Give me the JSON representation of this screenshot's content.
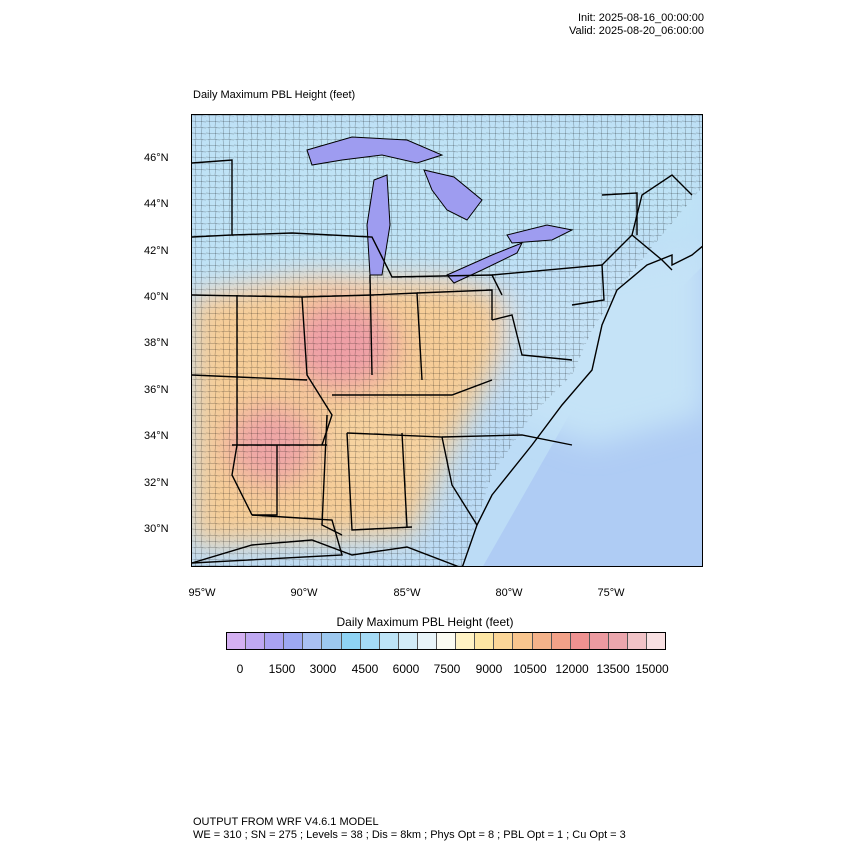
{
  "header": {
    "init": "Init: 2025-08-16_00:00:00",
    "valid": "Valid: 2025-08-20_06:00:00"
  },
  "map": {
    "title": "Daily Maximum PBL Height   (feet)",
    "lat_labels": [
      "46°N",
      "44°N",
      "42°N",
      "40°N",
      "38°N",
      "36°N",
      "34°N",
      "32°N",
      "30°N"
    ],
    "lon_labels": [
      "95°W",
      "90°W",
      "85°W",
      "80°W",
      "75°W"
    ],
    "colors": {
      "ocean": "#b9dcf5",
      "lake": "#9e9cf0",
      "north": "#bfe3f6",
      "central": "#f7cf97",
      "hot": "#f0a4a6",
      "east": "#c7e5f7",
      "border": "#000000"
    }
  },
  "colorbar": {
    "title": "Daily Maximum PBL Height  (feet)",
    "tick_labels": [
      "0",
      "1500",
      "3000",
      "4500",
      "6000",
      "7500",
      "9000",
      "10500",
      "12000",
      "13500",
      "15000"
    ],
    "colors": [
      "#d4b0f2",
      "#bfa8f2",
      "#aaa2f2",
      "#9ea8f2",
      "#a9c0f2",
      "#9cc8ef",
      "#8ed3f4",
      "#a5dbf6",
      "#bde4f7",
      "#d2ecf8",
      "#e8f4f9",
      "#fbfbf2",
      "#fff2c4",
      "#fde6a4",
      "#fbd698",
      "#f8c58e",
      "#f4b28a",
      "#f2a188",
      "#ef9291",
      "#ec9aa0",
      "#eba6ad",
      "#f1c3c7",
      "#f8e0e2"
    ]
  },
  "footer": {
    "line1": "OUTPUT FROM WRF V4.6.1 MODEL",
    "line2": "WE = 310 ; SN = 275 ; Levels = 38 ; Dis = 8km ; Phys Opt = 8 ; PBL Opt = 1 ; Cu Opt = 3"
  }
}
